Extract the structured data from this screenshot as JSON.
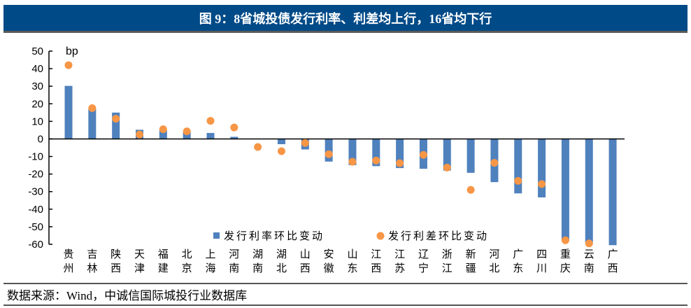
{
  "chart_data": {
    "type": "bar+scatter",
    "title": "图 9：8省城投债发行利率、利差均上行，16省均下行",
    "ylabel": "bp",
    "ylim": [
      -60,
      50
    ],
    "yticks": [
      50,
      40,
      30,
      20,
      10,
      0,
      -10,
      -20,
      -30,
      -40,
      -50,
      -60
    ],
    "grid": false,
    "legend_placement": "bottom-center",
    "categories": [
      "贵州",
      "吉林",
      "陕西",
      "天津",
      "福建",
      "北京",
      "上海",
      "河南",
      "湖南",
      "湖北",
      "山西",
      "安徽",
      "山东",
      "江西",
      "江苏",
      "辽宁",
      "浙江",
      "新疆",
      "河北",
      "广东",
      "四川",
      "重庆",
      "云南",
      "广西"
    ],
    "series": [
      {
        "name": "发行利率环比变动",
        "kind": "bar",
        "color": "#4f81bd",
        "values": [
          30.2,
          17.5,
          15,
          5.2,
          5,
          4,
          3.4,
          1.2,
          0,
          -3,
          -6,
          -12.9,
          -14.9,
          -15.5,
          -16.6,
          -17,
          -18,
          -19.3,
          -24.6,
          -31,
          -33.3,
          -58,
          -59,
          -60.5
        ]
      },
      {
        "name": "发行利差环比变动",
        "kind": "scatter",
        "color": "#f79646",
        "values": [
          42,
          17.5,
          11.5,
          2.5,
          5.5,
          4.3,
          10.3,
          6.5,
          -4.6,
          -7,
          -2.3,
          -8.7,
          -13,
          -12.3,
          -13.8,
          -9.1,
          -16.3,
          -29,
          -13.6,
          -23.9,
          -25.7,
          -57.7,
          -59.5,
          null
        ]
      }
    ]
  },
  "source": "数据来源：Wind，中诚信国际城投行业数据库"
}
